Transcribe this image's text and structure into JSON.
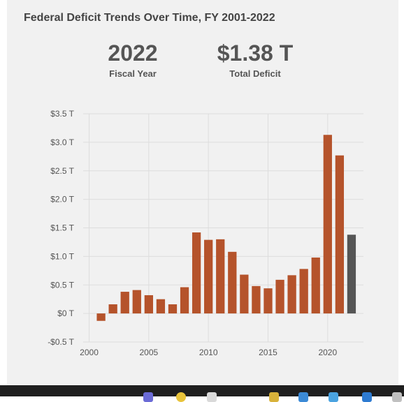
{
  "title": "Federal Deficit Trends Over Time, FY 2001-2022",
  "stats": {
    "year_value": "2022",
    "year_label": "Fiscal Year",
    "total_value": "$1.38 T",
    "total_label": "Total Deficit"
  },
  "colors": {
    "bar": "#b5532b",
    "highlight": "#555555",
    "grid": "#dddddd",
    "card": "#f1f1f1"
  },
  "chart_data": {
    "type": "bar",
    "title": "Federal Deficit Trends Over Time, FY 2001-2022",
    "xlabel": "",
    "ylabel": "",
    "x": [
      2001,
      2002,
      2003,
      2004,
      2005,
      2006,
      2007,
      2008,
      2009,
      2010,
      2011,
      2012,
      2013,
      2014,
      2015,
      2016,
      2017,
      2018,
      2019,
      2020,
      2021,
      2022
    ],
    "values": [
      -0.13,
      0.16,
      0.38,
      0.41,
      0.32,
      0.25,
      0.16,
      0.46,
      1.42,
      1.29,
      1.3,
      1.08,
      0.68,
      0.48,
      0.44,
      0.59,
      0.67,
      0.78,
      0.98,
      3.13,
      2.77,
      1.38
    ],
    "highlight_x": 2022,
    "ylim": [
      -0.5,
      3.5
    ],
    "xlim": [
      1999.5,
      2023
    ],
    "yticks": [
      -0.5,
      0,
      0.5,
      1.0,
      1.5,
      2.0,
      2.5,
      3.0,
      3.5
    ],
    "ytick_labels": [
      "-$0.5 T",
      "$0 T",
      "$0.5 T",
      "$1.0 T",
      "$1.5 T",
      "$2.0 T",
      "$2.5 T",
      "$3.0 T",
      "$3.5 T"
    ],
    "xticks": [
      2000,
      2005,
      2010,
      2015,
      2020
    ],
    "xtick_labels": [
      "2000",
      "2005",
      "2010",
      "2015",
      "2020"
    ],
    "grid": true
  }
}
